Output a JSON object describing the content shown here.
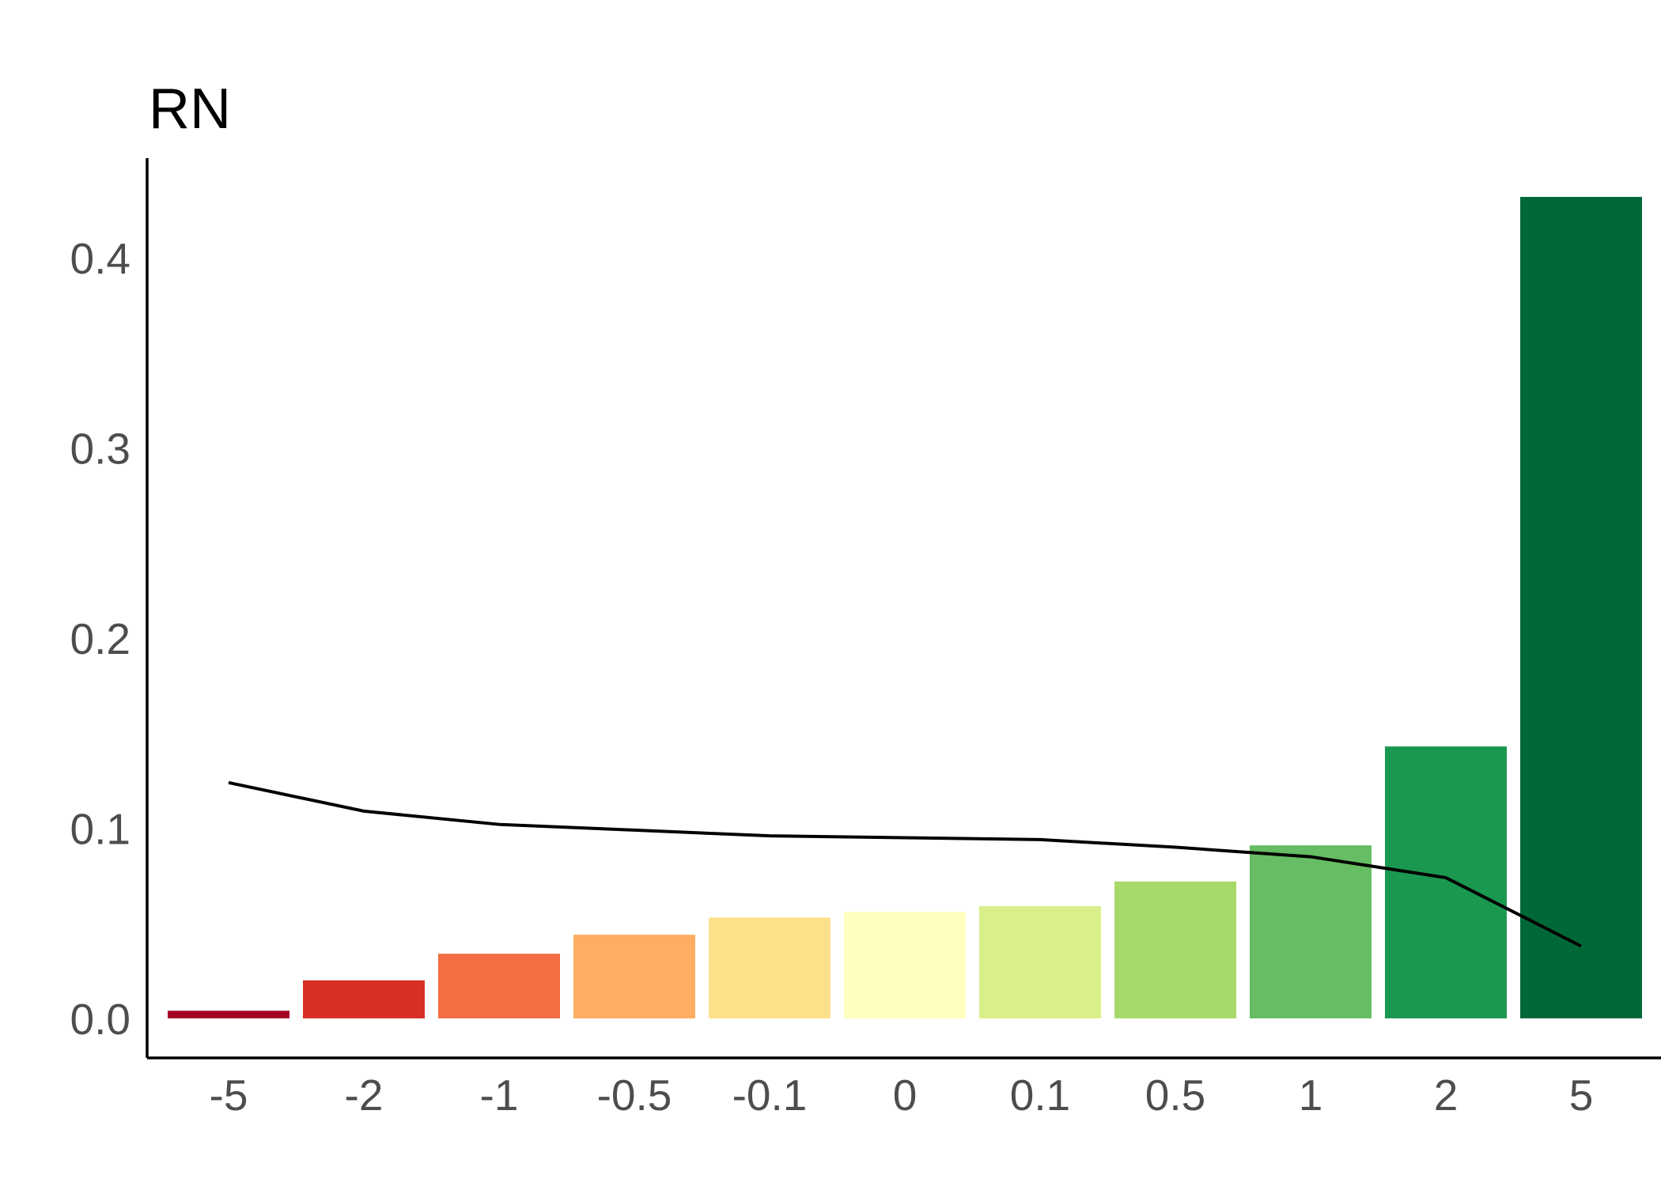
{
  "chart_data": {
    "type": "bar",
    "title": "RN",
    "xlabel": "",
    "ylabel": "",
    "categories": [
      "-5",
      "-2",
      "-1",
      "-0.5",
      "-0.1",
      "0",
      "0.1",
      "0.5",
      "1",
      "2",
      "5"
    ],
    "series": [
      {
        "type": "bar",
        "values": [
          0.004,
          0.02,
          0.034,
          0.044,
          0.053,
          0.056,
          0.059,
          0.072,
          0.091,
          0.143,
          0.432
        ],
        "colors": [
          "#a50026",
          "#d73027",
          "#f46d43",
          "#fdae61",
          "#fee08b",
          "#ffffbf",
          "#d9ef8b",
          "#a6d96a",
          "#66bd63",
          "#1a9850",
          "#006837"
        ]
      },
      {
        "type": "line",
        "values": [
          0.124,
          0.109,
          0.102,
          0.099,
          0.096,
          0.095,
          0.094,
          0.09,
          0.085,
          0.074,
          0.038
        ],
        "color": "#000000"
      }
    ],
    "y_ticks": [
      "0.0",
      "0.1",
      "0.2",
      "0.3",
      "0.4"
    ],
    "ylim": [
      -0.02,
      0.455
    ],
    "grid": false,
    "legend": "none"
  }
}
